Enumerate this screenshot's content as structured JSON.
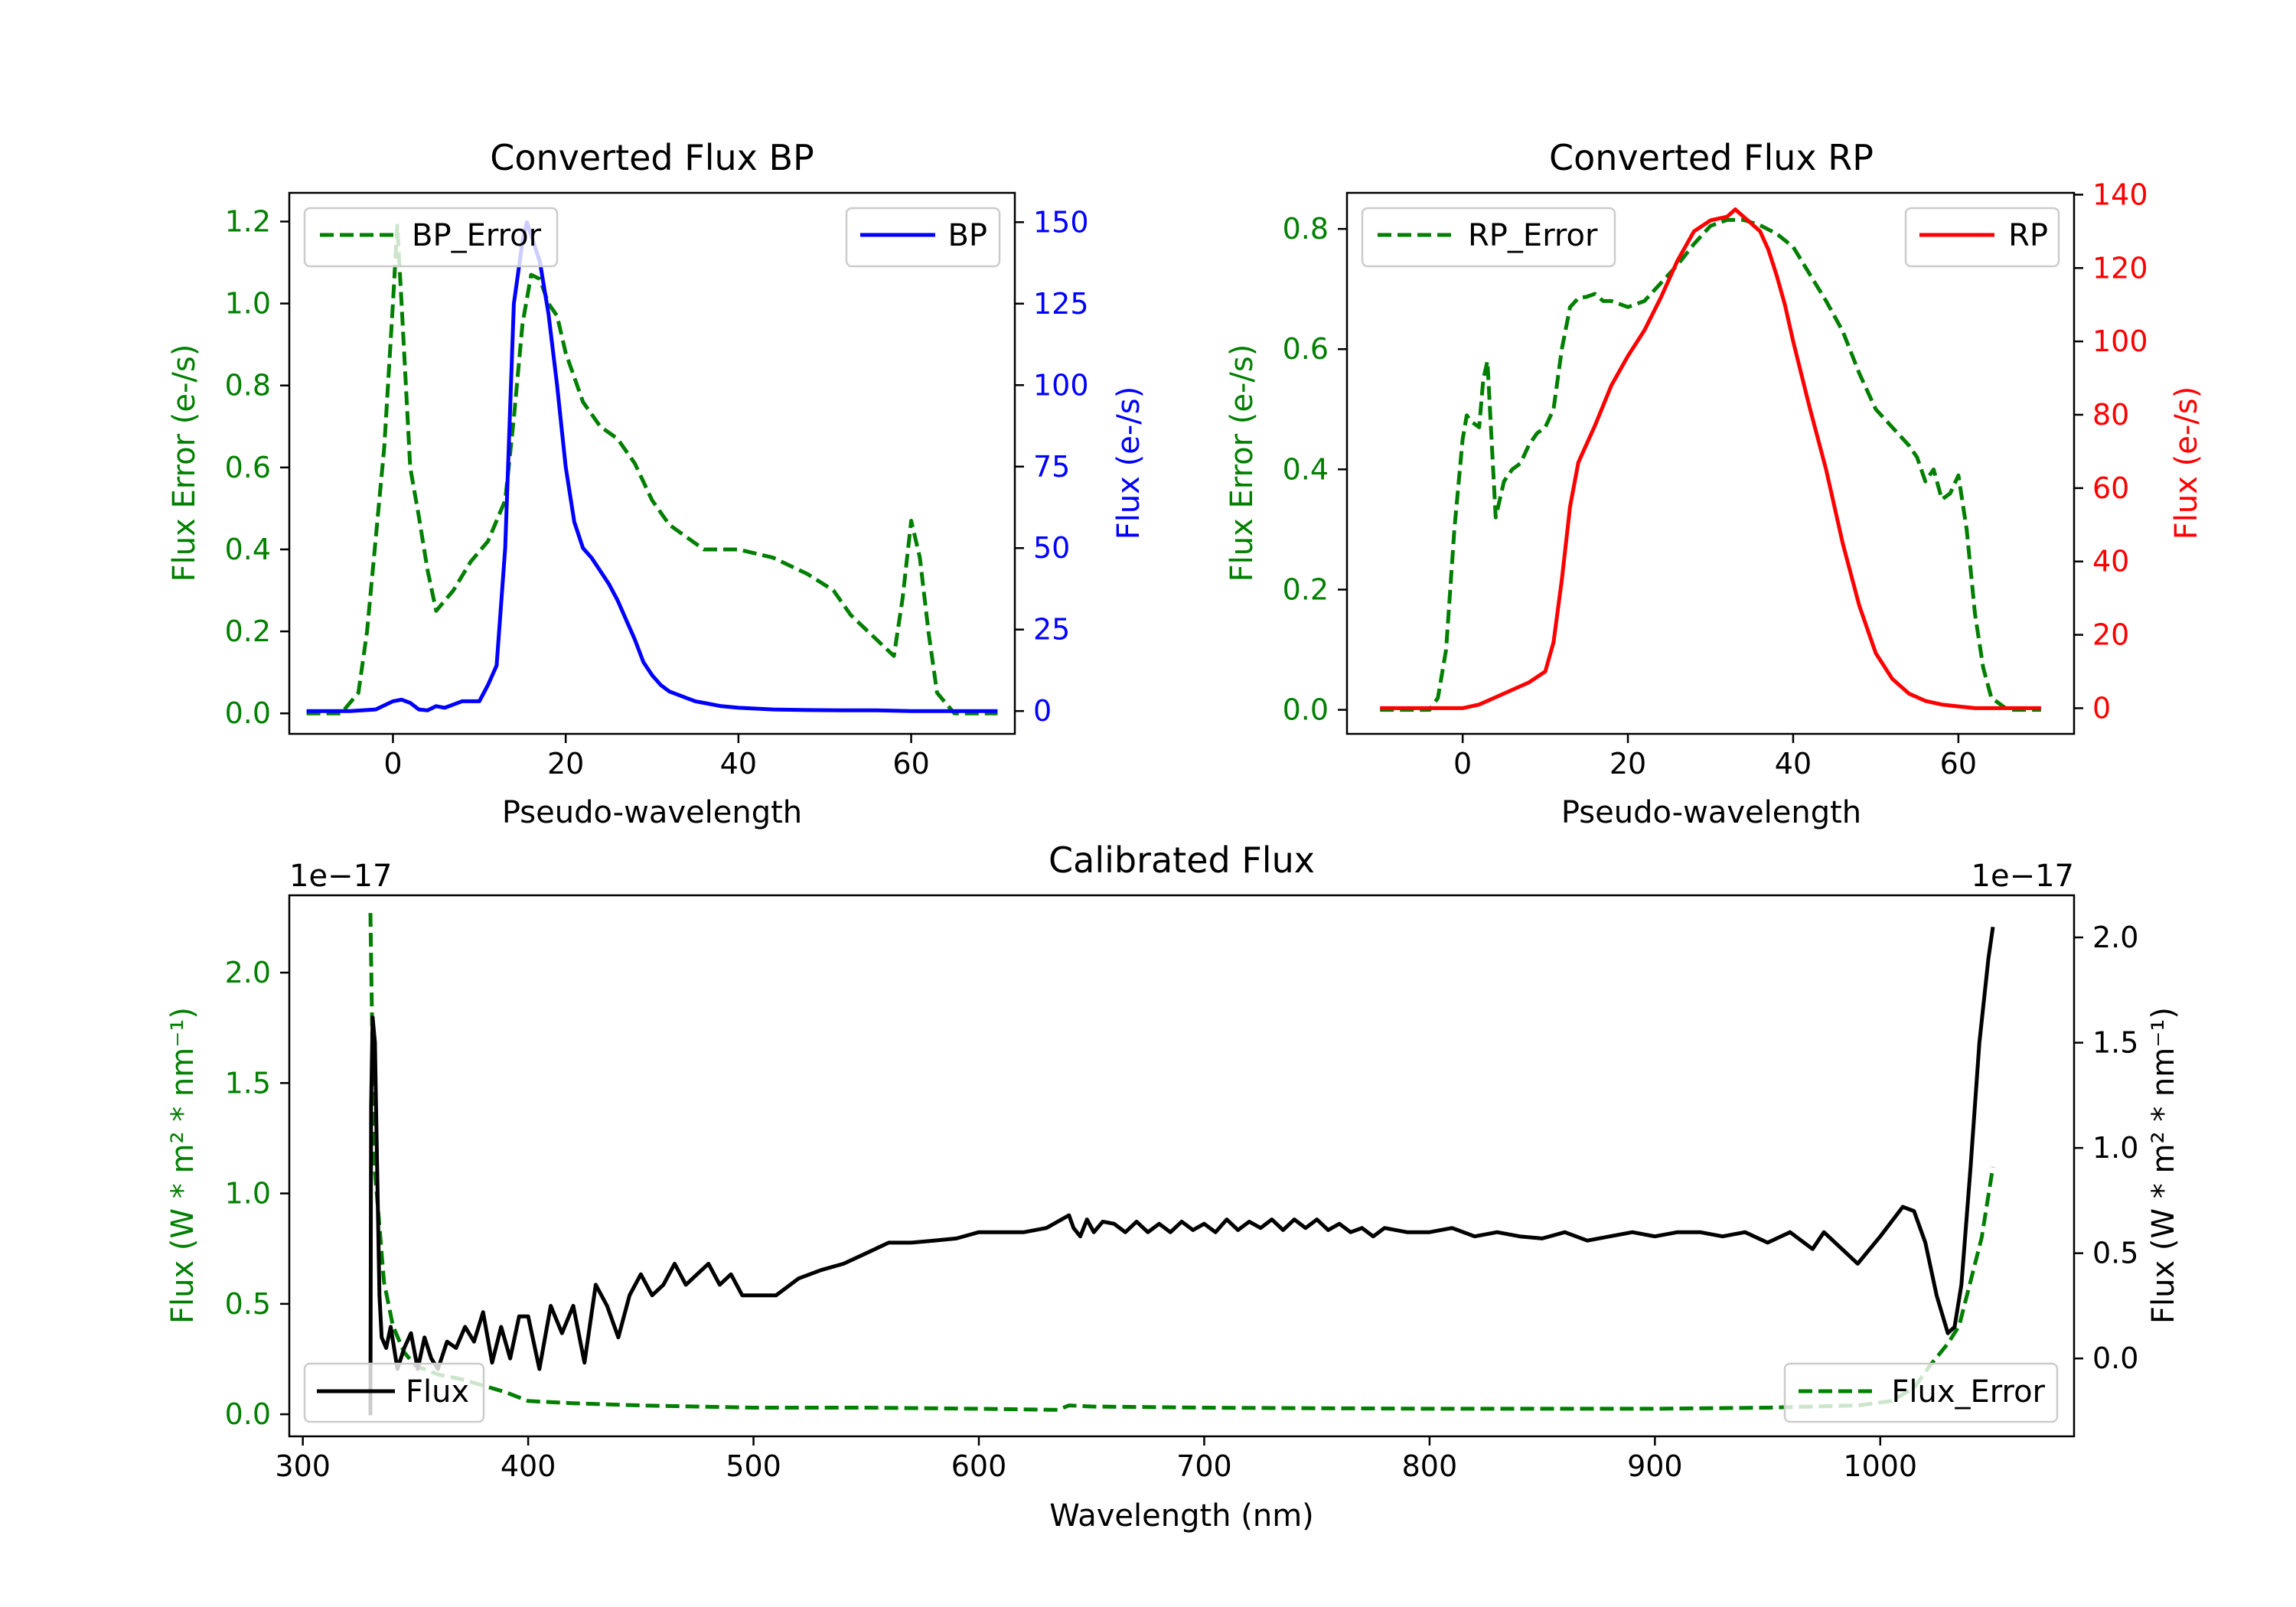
{
  "colors": {
    "error": "#007f00",
    "bp": "#0000ff",
    "rp": "#ff0000",
    "flux": "#000000"
  },
  "chart_data": [
    {
      "id": "bp",
      "type": "line",
      "title": "Converted Flux BP",
      "xlabel": "Pseudo-wavelength",
      "ylabel_left": "Flux Error (e-/s)",
      "ylabel_right": "Flux (e-/s)",
      "xlim": [
        -12,
        72
      ],
      "ylim_left": [
        -0.05,
        1.27
      ],
      "ylim_right": [
        -7,
        159
      ],
      "xticks": [
        0,
        20,
        40,
        60
      ],
      "yticks_left": [
        0.0,
        0.2,
        0.4,
        0.6,
        0.8,
        1.0,
        1.2
      ],
      "yticks_right": [
        0,
        25,
        50,
        75,
        100,
        125,
        150
      ],
      "legend_left": {
        "label": "BP_Error",
        "position": "top-left"
      },
      "legend_right": {
        "label": "BP",
        "position": "top-right"
      },
      "series": [
        {
          "name": "BP_Error",
          "axis": "left",
          "color": "#007f00",
          "dashed": true,
          "x": [
            -10,
            -6,
            -4,
            -3,
            -1,
            0,
            0.5,
            1,
            2,
            3,
            4,
            5,
            7,
            9,
            11,
            13,
            14,
            15,
            16,
            17,
            18,
            19,
            20,
            22,
            24,
            26,
            28,
            30,
            32,
            34,
            36,
            40,
            44,
            48,
            51,
            53,
            55,
            57,
            58,
            59,
            60,
            61,
            62,
            63,
            65,
            68,
            70
          ],
          "y": [
            0.0,
            0.0,
            0.05,
            0.2,
            0.65,
            1.0,
            1.19,
            1.0,
            0.6,
            0.48,
            0.35,
            0.25,
            0.3,
            0.37,
            0.42,
            0.52,
            0.72,
            0.95,
            1.07,
            1.06,
            1.0,
            0.97,
            0.88,
            0.76,
            0.7,
            0.67,
            0.61,
            0.52,
            0.46,
            0.43,
            0.4,
            0.4,
            0.38,
            0.34,
            0.3,
            0.24,
            0.2,
            0.16,
            0.14,
            0.28,
            0.47,
            0.38,
            0.2,
            0.05,
            0.0,
            0.0,
            0.0
          ]
        },
        {
          "name": "BP",
          "axis": "right",
          "color": "#0000ff",
          "dashed": false,
          "x": [
            -10,
            -5,
            -2,
            0,
            1,
            2,
            3,
            4,
            5,
            6,
            7,
            8,
            9,
            10,
            11,
            12,
            13,
            14,
            15,
            15.5,
            16,
            17,
            18,
            19,
            20,
            21,
            22,
            23,
            24,
            25,
            26,
            27,
            28,
            29,
            30,
            31,
            32,
            33,
            34,
            35,
            36,
            38,
            40,
            44,
            48,
            52,
            56,
            60,
            64,
            70
          ],
          "y": [
            0,
            0,
            0.5,
            3,
            3.5,
            2.5,
            0.5,
            0.2,
            1.5,
            1,
            2,
            3,
            3,
            3,
            8,
            14,
            50,
            125,
            144,
            150,
            146,
            138,
            122,
            100,
            75,
            58,
            50,
            47,
            43,
            39,
            34,
            28,
            22,
            15,
            11,
            8,
            6,
            5,
            4,
            3,
            2.5,
            1.5,
            1,
            0.5,
            0.3,
            0.2,
            0.2,
            0,
            0,
            0
          ]
        }
      ]
    },
    {
      "id": "rp",
      "type": "line",
      "title": "Converted Flux RP",
      "xlabel": "Pseudo-wavelength",
      "ylabel_left": "Flux Error (e-/s)",
      "ylabel_right": "Flux (e-/s)",
      "xlim": [
        -14,
        74
      ],
      "ylim_left": [
        -0.04,
        0.86
      ],
      "ylim_right": [
        -7,
        140.5
      ],
      "xticks": [
        0,
        20,
        40,
        60
      ],
      "yticks_left": [
        0.0,
        0.2,
        0.4,
        0.6,
        0.8
      ],
      "yticks_right": [
        0,
        20,
        40,
        60,
        80,
        100,
        120,
        140
      ],
      "legend_left": {
        "label": "RP_Error",
        "position": "top-left"
      },
      "legend_right": {
        "label": "RP",
        "position": "top-right"
      },
      "series": [
        {
          "name": "RP_Error",
          "axis": "left",
          "color": "#007f00",
          "dashed": true,
          "x": [
            -10,
            -4,
            -3,
            -2,
            -1,
            0,
            0.5,
            1,
            2,
            2.5,
            3,
            3.5,
            4,
            5,
            6,
            7,
            8,
            9,
            10,
            11,
            12,
            13,
            14,
            15,
            16,
            17,
            18,
            19,
            20,
            22,
            24,
            26,
            28,
            30,
            32,
            34,
            36,
            38,
            40,
            42,
            44,
            46,
            48,
            50,
            52,
            54,
            55,
            56,
            57,
            58,
            59,
            60,
            61,
            62,
            63,
            64,
            66,
            70
          ],
          "y": [
            0.0,
            0.0,
            0.02,
            0.1,
            0.3,
            0.45,
            0.49,
            0.48,
            0.47,
            0.55,
            0.58,
            0.45,
            0.32,
            0.38,
            0.4,
            0.41,
            0.44,
            0.46,
            0.47,
            0.5,
            0.6,
            0.67,
            0.685,
            0.687,
            0.692,
            0.68,
            0.68,
            0.675,
            0.67,
            0.68,
            0.71,
            0.74,
            0.775,
            0.805,
            0.815,
            0.815,
            0.806,
            0.792,
            0.77,
            0.725,
            0.68,
            0.63,
            0.56,
            0.5,
            0.47,
            0.44,
            0.42,
            0.38,
            0.4,
            0.35,
            0.36,
            0.39,
            0.3,
            0.16,
            0.07,
            0.02,
            0.0,
            0.0
          ]
        },
        {
          "name": "RP",
          "axis": "right",
          "color": "#ff0000",
          "dashed": false,
          "x": [
            -10,
            -5,
            0,
            2,
            4,
            6,
            8,
            10,
            11,
            12,
            13,
            14,
            15,
            16,
            18,
            20,
            22,
            24,
            26,
            28,
            30,
            32,
            33,
            34,
            35,
            36,
            37,
            38,
            39,
            40,
            42,
            44,
            46,
            48,
            50,
            52,
            54,
            56,
            58,
            60,
            62,
            65,
            70
          ],
          "y": [
            0,
            0,
            0,
            1,
            3,
            5,
            7,
            10,
            18,
            35,
            55,
            67,
            72,
            77,
            88,
            96,
            103,
            112,
            122,
            130,
            133,
            134,
            136,
            134,
            132,
            130,
            125,
            118,
            110,
            100,
            82,
            65,
            45,
            28,
            15,
            8,
            4,
            2,
            1,
            0.5,
            0,
            0,
            0
          ]
        }
      ]
    },
    {
      "id": "calibrated",
      "type": "line",
      "title": "Calibrated Flux",
      "xlabel": "Wavelength (nm)",
      "ylabel_left": "Flux (W * m² * nm⁻¹)",
      "ylabel_right": "Flux (W * m² * nm⁻¹)",
      "offset_left": "1e−17",
      "offset_right": "1e−17",
      "xlim": [
        294,
        1086
      ],
      "ylim_left": [
        -0.1,
        2.35
      ],
      "ylim_right": [
        -0.37,
        2.2
      ],
      "xticks": [
        300,
        400,
        500,
        600,
        700,
        800,
        900,
        1000
      ],
      "yticks_left": [
        0.0,
        0.5,
        1.0,
        1.5,
        2.0
      ],
      "yticks_right": [
        0.0,
        0.5,
        1.0,
        1.5,
        2.0
      ],
      "legend_left": {
        "label": "Flux",
        "position": "bottom-left"
      },
      "legend_right": {
        "label": "Flux_Error",
        "position": "bottom-right"
      },
      "series": [
        {
          "name": "Flux_Error",
          "axis": "left",
          "color": "#007f00",
          "dashed": true,
          "x": [
            330,
            331,
            332,
            334,
            336,
            340,
            345,
            350,
            360,
            370,
            380,
            390,
            400,
            420,
            450,
            500,
            550,
            600,
            635,
            640,
            650,
            700,
            800,
            900,
            950,
            990,
            1005,
            1015,
            1022,
            1030,
            1035,
            1040,
            1045,
            1050
          ],
          "y": [
            2.27,
            1.6,
            1.1,
            0.85,
            0.6,
            0.4,
            0.28,
            0.22,
            0.18,
            0.16,
            0.13,
            0.1,
            0.06,
            0.05,
            0.04,
            0.03,
            0.03,
            0.025,
            0.02,
            0.04,
            0.035,
            0.03,
            0.025,
            0.025,
            0.03,
            0.04,
            0.06,
            0.12,
            0.22,
            0.32,
            0.4,
            0.6,
            0.8,
            1.12
          ]
        },
        {
          "name": "Flux",
          "axis": "right",
          "color": "#000000",
          "dashed": false,
          "x": [
            330,
            330.3,
            331,
            332,
            333,
            334,
            335,
            337,
            339,
            342,
            345,
            348,
            351,
            354,
            357,
            360,
            364,
            368,
            372,
            376,
            380,
            384,
            388,
            392,
            396,
            400,
            405,
            410,
            415,
            420,
            425,
            430,
            435,
            440,
            445,
            450,
            455,
            460,
            465,
            470,
            475,
            480,
            485,
            490,
            495,
            500,
            510,
            520,
            530,
            540,
            550,
            560,
            570,
            580,
            590,
            600,
            610,
            620,
            630,
            640,
            642,
            645,
            648,
            651,
            655,
            660,
            665,
            670,
            675,
            680,
            685,
            690,
            695,
            700,
            705,
            710,
            715,
            720,
            725,
            730,
            735,
            740,
            745,
            750,
            755,
            760,
            765,
            770,
            775,
            780,
            790,
            800,
            810,
            820,
            830,
            840,
            850,
            860,
            870,
            880,
            890,
            900,
            910,
            920,
            930,
            940,
            950,
            960,
            970,
            975,
            980,
            990,
            1000,
            1010,
            1015,
            1020,
            1025,
            1030,
            1033,
            1036,
            1040,
            1044,
            1048,
            1050
          ],
          "y": [
            -0.27,
            1.2,
            1.62,
            1.5,
            0.9,
            0.3,
            0.1,
            0.05,
            0.15,
            -0.05,
            0.05,
            0.12,
            -0.05,
            0.1,
            0.0,
            -0.05,
            0.08,
            0.05,
            0.15,
            0.08,
            0.22,
            -0.02,
            0.15,
            0.0,
            0.2,
            0.2,
            -0.05,
            0.25,
            0.12,
            0.25,
            -0.02,
            0.35,
            0.25,
            0.1,
            0.3,
            0.4,
            0.3,
            0.35,
            0.45,
            0.35,
            0.4,
            0.45,
            0.35,
            0.4,
            0.3,
            0.3,
            0.3,
            0.38,
            0.42,
            0.45,
            0.5,
            0.55,
            0.55,
            0.56,
            0.57,
            0.6,
            0.6,
            0.6,
            0.62,
            0.68,
            0.62,
            0.58,
            0.66,
            0.6,
            0.65,
            0.64,
            0.6,
            0.65,
            0.6,
            0.64,
            0.6,
            0.65,
            0.61,
            0.64,
            0.6,
            0.66,
            0.61,
            0.65,
            0.62,
            0.66,
            0.61,
            0.66,
            0.62,
            0.66,
            0.61,
            0.64,
            0.6,
            0.62,
            0.58,
            0.62,
            0.6,
            0.6,
            0.62,
            0.58,
            0.6,
            0.58,
            0.57,
            0.6,
            0.56,
            0.58,
            0.6,
            0.58,
            0.6,
            0.6,
            0.58,
            0.6,
            0.55,
            0.6,
            0.52,
            0.6,
            0.55,
            0.45,
            0.58,
            0.72,
            0.7,
            0.55,
            0.3,
            0.12,
            0.15,
            0.35,
            0.9,
            1.5,
            1.9,
            2.05
          ]
        }
      ]
    }
  ]
}
